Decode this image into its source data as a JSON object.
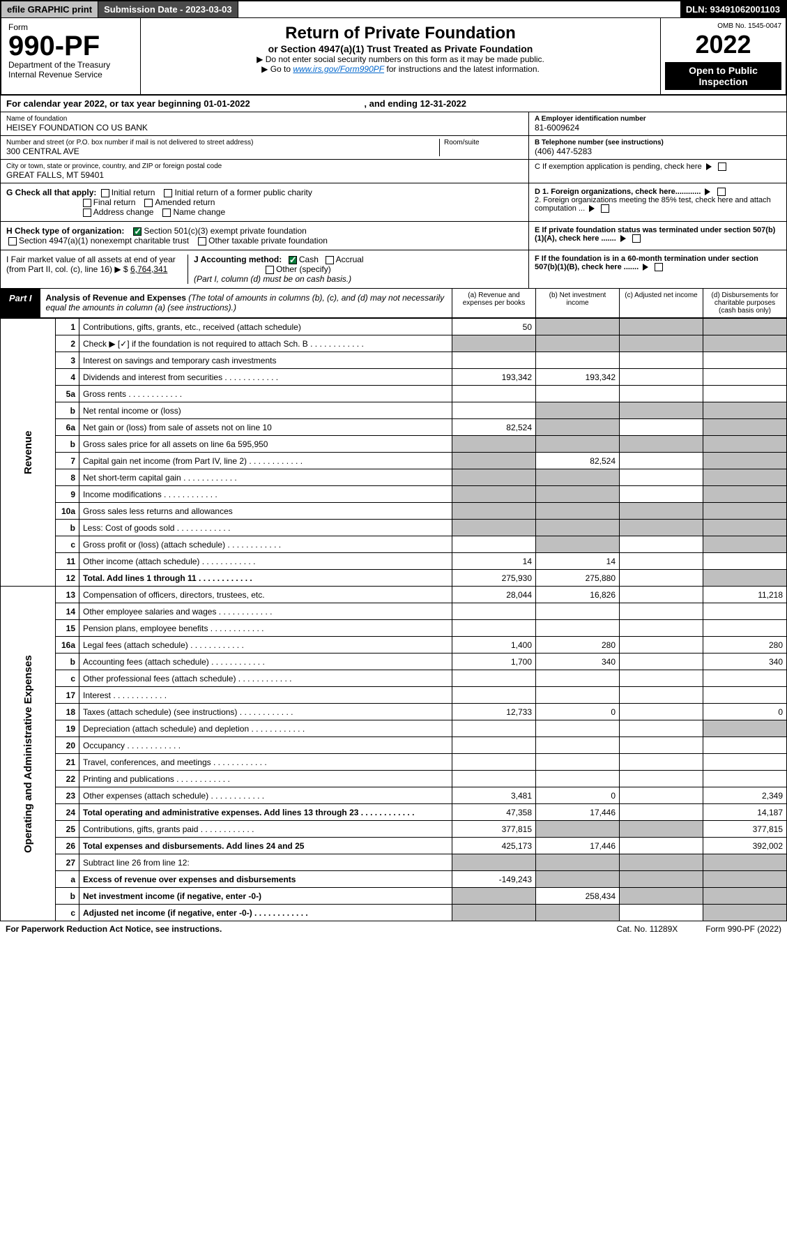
{
  "hdr": {
    "efile": "efile GRAPHIC print",
    "subdate": "Submission Date - 2023-03-03",
    "dln": "DLN: 93491062001103",
    "omb": "OMB No. 1545-0047",
    "form": "Form",
    "formno": "990-PF",
    "dept": "Department of the Treasury",
    "irs": "Internal Revenue Service",
    "title": "Return of Private Foundation",
    "subtitle": "or Section 4947(a)(1) Trust Treated as Private Foundation",
    "instr1": "▶ Do not enter social security numbers on this form as it may be made public.",
    "instr2": "▶ Go to ",
    "instr_link": "www.irs.gov/Form990PF",
    "instr3": " for instructions and the latest information.",
    "year": "2022",
    "open": "Open to Public Inspection"
  },
  "cal": "For calendar year 2022, or tax year beginning 01-01-2022",
  "cal_end": ", and ending 12-31-2022",
  "name_lbl": "Name of foundation",
  "name": "HEISEY FOUNDATION CO US BANK",
  "addr_lbl": "Number and street (or P.O. box number if mail is not delivered to street address)",
  "addr": "300 CENTRAL AVE",
  "room_lbl": "Room/suite",
  "city_lbl": "City or town, state or province, country, and ZIP or foreign postal code",
  "city": "GREAT FALLS, MT  59401",
  "ein_lbl": "A Employer identification number",
  "ein": "81-6009624",
  "tel_lbl": "B Telephone number (see instructions)",
  "tel": "(406) 447-5283",
  "C": "C If exemption application is pending, check here",
  "G": "G Check all that apply:",
  "G1": "Initial return",
  "G2": "Initial return of a former public charity",
  "G3": "Final return",
  "G4": "Amended return",
  "G5": "Address change",
  "G6": "Name change",
  "D1": "D 1. Foreign organizations, check here............",
  "D2": "2. Foreign organizations meeting the 85% test, check here and attach computation ...",
  "H": "H Check type of organization:",
  "H1": "Section 501(c)(3) exempt private foundation",
  "H2": "Section 4947(a)(1) nonexempt charitable trust",
  "H3": "Other taxable private foundation",
  "E": "E If private foundation status was terminated under section 507(b)(1)(A), check here .......",
  "I": "I Fair market value of all assets at end of year (from Part II, col. (c), line 16) ▶ $",
  "I_val": "6,764,341",
  "J": "J Accounting method:",
  "J1": "Cash",
  "J2": "Accrual",
  "J3": "Other (specify)",
  "J_note": "(Part I, column (d) must be on cash basis.)",
  "F": "F If the foundation is in a 60-month termination under section 507(b)(1)(B), check here .......",
  "part1": "Part I",
  "part1_t": "Analysis of Revenue and Expenses",
  "part1_sub": "(The total of amounts in columns (b), (c), and (d) may not necessarily equal the amounts in column (a) (see instructions).)",
  "colA": "(a) Revenue and expenses per books",
  "colB": "(b) Net investment income",
  "colC": "(c) Adjusted net income",
  "colD": "(d) Disbursements for charitable purposes (cash basis only)",
  "sideR": "Revenue",
  "sideE": "Operating and Administrative Expenses",
  "rows": [
    {
      "n": "1",
      "d": "Contributions, gifts, grants, etc., received (attach schedule)",
      "a": "50",
      "gB": 1,
      "gC": 1,
      "gD": 1
    },
    {
      "n": "2",
      "d": "Check ▶ [✓] if the foundation is not required to attach Sch. B",
      "gA": 1,
      "gB": 1,
      "gC": 1,
      "gD": 1,
      "checked": 1,
      "dots": 1
    },
    {
      "n": "3",
      "d": "Interest on savings and temporary cash investments"
    },
    {
      "n": "4",
      "d": "Dividends and interest from securities",
      "a": "193,342",
      "b": "193,342",
      "dots": 1
    },
    {
      "n": "5a",
      "d": "Gross rents",
      "dots": 1
    },
    {
      "n": "b",
      "d": "Net rental income or (loss)",
      "gB": 1,
      "gC": 1,
      "gD": 1
    },
    {
      "n": "6a",
      "d": "Net gain or (loss) from sale of assets not on line 10",
      "a": "82,524",
      "gB": 1,
      "gD": 1
    },
    {
      "n": "b",
      "d": "Gross sales price for all assets on line 6a  595,950",
      "gA": 1,
      "gB": 1,
      "gC": 1,
      "gD": 1
    },
    {
      "n": "7",
      "d": "Capital gain net income (from Part IV, line 2)",
      "b": "82,524",
      "gA": 1,
      "gD": 1,
      "dots": 1
    },
    {
      "n": "8",
      "d": "Net short-term capital gain",
      "gA": 1,
      "gB": 1,
      "gD": 1,
      "dots": 1
    },
    {
      "n": "9",
      "d": "Income modifications",
      "gA": 1,
      "gB": 1,
      "gD": 1,
      "dots": 1
    },
    {
      "n": "10a",
      "d": "Gross sales less returns and allowances",
      "gA": 1,
      "gB": 1,
      "gC": 1,
      "gD": 1
    },
    {
      "n": "b",
      "d": "Less: Cost of goods sold",
      "gA": 1,
      "gB": 1,
      "gC": 1,
      "gD": 1,
      "dots": 1
    },
    {
      "n": "c",
      "d": "Gross profit or (loss) (attach schedule)",
      "gB": 1,
      "gD": 1,
      "dots": 1
    },
    {
      "n": "11",
      "d": "Other income (attach schedule)",
      "a": "14",
      "b": "14",
      "dots": 1
    },
    {
      "n": "12",
      "d": "Total. Add lines 1 through 11",
      "a": "275,930",
      "b": "275,880",
      "bold": 1,
      "gD": 1,
      "dots": 1
    },
    {
      "n": "13",
      "d": "Compensation of officers, directors, trustees, etc.",
      "a": "28,044",
      "b": "16,826",
      "dd": "11,218"
    },
    {
      "n": "14",
      "d": "Other employee salaries and wages",
      "dots": 1
    },
    {
      "n": "15",
      "d": "Pension plans, employee benefits",
      "dots": 1
    },
    {
      "n": "16a",
      "d": "Legal fees (attach schedule)",
      "a": "1,400",
      "b": "280",
      "dd": "280",
      "dots": 1
    },
    {
      "n": "b",
      "d": "Accounting fees (attach schedule)",
      "a": "1,700",
      "b": "340",
      "dd": "340",
      "dots": 1
    },
    {
      "n": "c",
      "d": "Other professional fees (attach schedule)",
      "dots": 1
    },
    {
      "n": "17",
      "d": "Interest",
      "dots": 1
    },
    {
      "n": "18",
      "d": "Taxes (attach schedule) (see instructions)",
      "a": "12,733",
      "b": "0",
      "dd": "0",
      "dots": 1
    },
    {
      "n": "19",
      "d": "Depreciation (attach schedule) and depletion",
      "gD": 1,
      "dots": 1
    },
    {
      "n": "20",
      "d": "Occupancy",
      "dots": 1
    },
    {
      "n": "21",
      "d": "Travel, conferences, and meetings",
      "dots": 1
    },
    {
      "n": "22",
      "d": "Printing and publications",
      "dots": 1
    },
    {
      "n": "23",
      "d": "Other expenses (attach schedule)",
      "a": "3,481",
      "b": "0",
      "dd": "2,349",
      "dots": 1
    },
    {
      "n": "24",
      "d": "Total operating and administrative expenses. Add lines 13 through 23",
      "a": "47,358",
      "b": "17,446",
      "dd": "14,187",
      "bold": 1,
      "dots": 1
    },
    {
      "n": "25",
      "d": "Contributions, gifts, grants paid",
      "a": "377,815",
      "dd": "377,815",
      "gB": 1,
      "gC": 1,
      "dots": 1
    },
    {
      "n": "26",
      "d": "Total expenses and disbursements. Add lines 24 and 25",
      "a": "425,173",
      "b": "17,446",
      "dd": "392,002",
      "bold": 1
    },
    {
      "n": "27",
      "d": "Subtract line 26 from line 12:",
      "gA": 1,
      "gB": 1,
      "gC": 1,
      "gD": 1
    },
    {
      "n": "a",
      "d": "Excess of revenue over expenses and disbursements",
      "a": "-149,243",
      "bold": 1,
      "gB": 1,
      "gC": 1,
      "gD": 1
    },
    {
      "n": "b",
      "d": "Net investment income (if negative, enter -0-)",
      "b": "258,434",
      "bold": 1,
      "gA": 1,
      "gC": 1,
      "gD": 1
    },
    {
      "n": "c",
      "d": "Adjusted net income (if negative, enter -0-)",
      "bold": 1,
      "gA": 1,
      "gB": 1,
      "gD": 1,
      "dots": 1
    }
  ],
  "ftr1": "For Paperwork Reduction Act Notice, see instructions.",
  "ftr2": "Cat. No. 11289X",
  "ftr3": "Form 990-PF (2022)"
}
